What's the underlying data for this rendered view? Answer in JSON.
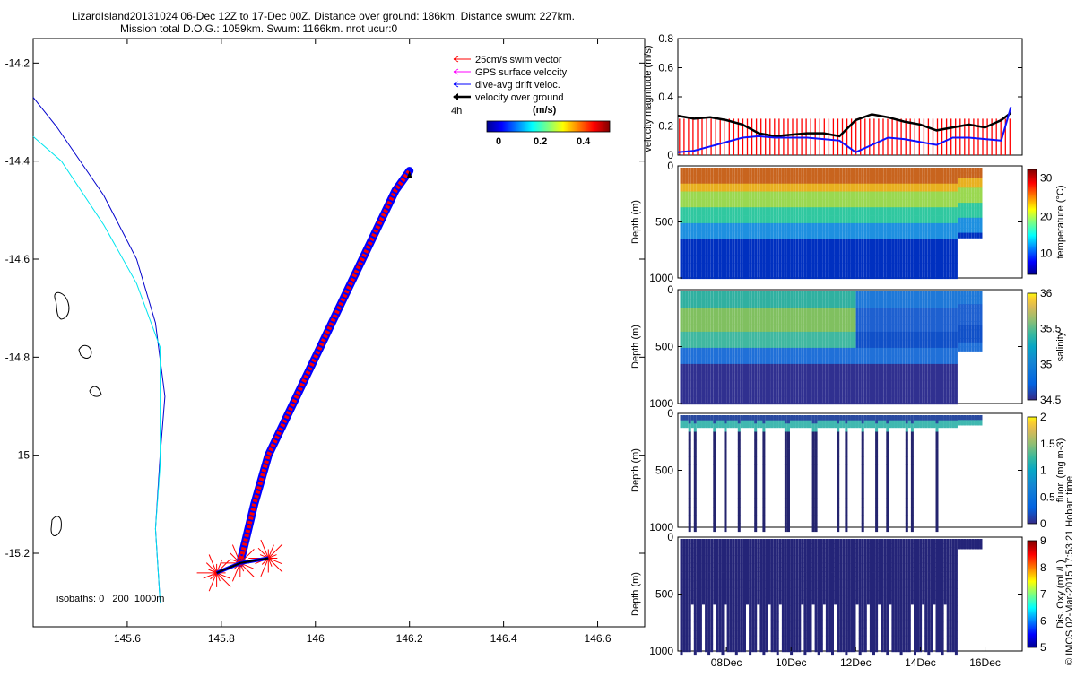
{
  "title": {
    "line1": "LizardIsland20131024 06-Dec 12Z to 17-Dec 00Z. Distance over ground: 186km. Distance swum: 227km.",
    "line2": "Mission total D.O.G.: 1059km. Swum: 1166km. nrot ucur:0"
  },
  "map": {
    "legend": [
      {
        "label": "25cm/s swim vector",
        "color": "#ff0000"
      },
      {
        "label": "GPS surface velocity",
        "color": "#ff00ff"
      },
      {
        "label": "dive-avg drift veloc.",
        "color": "#0000ff"
      },
      {
        "label": "velocity over ground",
        "color": "#000000"
      }
    ],
    "time_label": "4h",
    "colorbar": {
      "unit": "(m/s)",
      "ticks": [
        "0",
        "0.2",
        "0.4"
      ]
    },
    "isobaths_label": "isobaths: 0   200  1000m"
  },
  "footer_text": "© IMOS 02-Mar-2015 17:53:21 Hobart time",
  "chart_data": [
    {
      "type": "line",
      "name": "map",
      "xlim": [
        145.4,
        146.7
      ],
      "ylim": [
        -15.35,
        -14.15
      ],
      "xticks": [
        "145.6",
        "145.8",
        "146",
        "146.2",
        "146.4",
        "146.6"
      ],
      "yticks": [
        "-14.2",
        "-14.4",
        "-14.6",
        "-14.8",
        "-15",
        "-15.2"
      ],
      "track": {
        "x": [
          145.84,
          145.87,
          145.9,
          145.94,
          145.98,
          146.02,
          146.06,
          146.1,
          146.14,
          146.17,
          146.2
        ],
        "y": [
          -15.22,
          -15.1,
          -15.0,
          -14.92,
          -14.84,
          -14.76,
          -14.68,
          -14.6,
          -14.52,
          -14.46,
          -14.42
        ]
      },
      "end_cluster": {
        "x": [
          145.79,
          145.84,
          145.9
        ],
        "y": [
          -15.24,
          -15.22,
          -15.21
        ]
      },
      "isobath_1000": {
        "x": [
          145.4,
          145.45,
          145.55,
          145.62,
          145.66,
          145.68,
          145.67,
          145.66,
          145.67
        ],
        "y": [
          -14.27,
          -14.33,
          -14.47,
          -14.6,
          -14.73,
          -14.88,
          -15.0,
          -15.15,
          -15.3
        ]
      },
      "isobath_200": {
        "x": [
          145.4,
          145.46,
          145.55,
          145.62,
          145.67,
          145.67,
          145.67,
          145.66,
          145.67
        ],
        "y": [
          -14.35,
          -14.4,
          -14.53,
          -14.65,
          -14.78,
          -14.9,
          -15.02,
          -15.15,
          -15.3
        ]
      }
    },
    {
      "type": "line",
      "name": "velocity",
      "ylabel": "velocity magnitude (m/s)",
      "ylim": [
        0,
        0.8
      ],
      "yticks": [
        "0",
        "0.2",
        "0.4",
        "0.6",
        "0.8"
      ],
      "x_days": [
        6.5,
        7,
        7.5,
        8,
        8.5,
        9,
        9.5,
        10,
        10.5,
        11,
        11.5,
        12,
        12.5,
        13,
        13.5,
        14,
        14.5,
        15,
        15.5,
        16,
        16.5,
        16.8
      ],
      "series": [
        {
          "values": [
            0.27,
            0.25,
            0.26,
            0.24,
            0.21,
            0.15,
            0.13,
            0.14,
            0.15,
            0.15,
            0.13,
            0.24,
            0.28,
            0.26,
            0.23,
            0.21,
            0.17,
            0.19,
            0.21,
            0.19,
            0.24,
            0.29
          ]
        },
        {
          "values": [
            0.02,
            0.03,
            0.06,
            0.09,
            0.12,
            0.13,
            0.12,
            0.12,
            0.12,
            0.11,
            0.1,
            0.02,
            0.07,
            0.12,
            0.11,
            0.09,
            0.07,
            0.12,
            0.12,
            0.11,
            0.1,
            0.33
          ]
        },
        {
          "values": [
            0.25,
            0.25,
            0.25,
            0.25,
            0.25,
            0.25,
            0.25,
            0.25,
            0.25,
            0.25,
            0.25,
            0.25,
            0.25,
            0.25,
            0.25,
            0.25,
            0.25,
            0.25,
            0.25,
            0.25,
            0.25,
            0.25
          ]
        }
      ]
    },
    {
      "type": "scatter",
      "name": "temperature",
      "ylabel": "Depth (m)",
      "clabel": "temperature (°C)",
      "yticks": [
        "0",
        "500",
        "1000"
      ],
      "cticks": [
        "10",
        "20",
        "30"
      ]
    },
    {
      "type": "scatter",
      "name": "salinity",
      "ylabel": "Depth (m)",
      "clabel": "salinity",
      "yticks": [
        "0",
        "500",
        "1000"
      ],
      "cticks": [
        "34.5",
        "35",
        "35.5",
        "36"
      ]
    },
    {
      "type": "scatter",
      "name": "fluor",
      "ylabel": "Depth (m)",
      "clabel": "fluor. (mg m-3)",
      "yticks": [
        "0",
        "500",
        "1000"
      ],
      "cticks": [
        "0",
        "0.5",
        "1",
        "1.5",
        "2"
      ]
    },
    {
      "type": "scatter",
      "name": "oxygen",
      "ylabel": "Depth (m)",
      "clabel": "Dis. Oxy (mL/L)",
      "yticks": [
        "0",
        "500",
        "1000"
      ],
      "cticks": [
        "5",
        "6",
        "7",
        "8",
        "9"
      ],
      "xticks": [
        "08Dec",
        "10Dec",
        "12Dec",
        "14Dec",
        "16Dec"
      ]
    }
  ]
}
